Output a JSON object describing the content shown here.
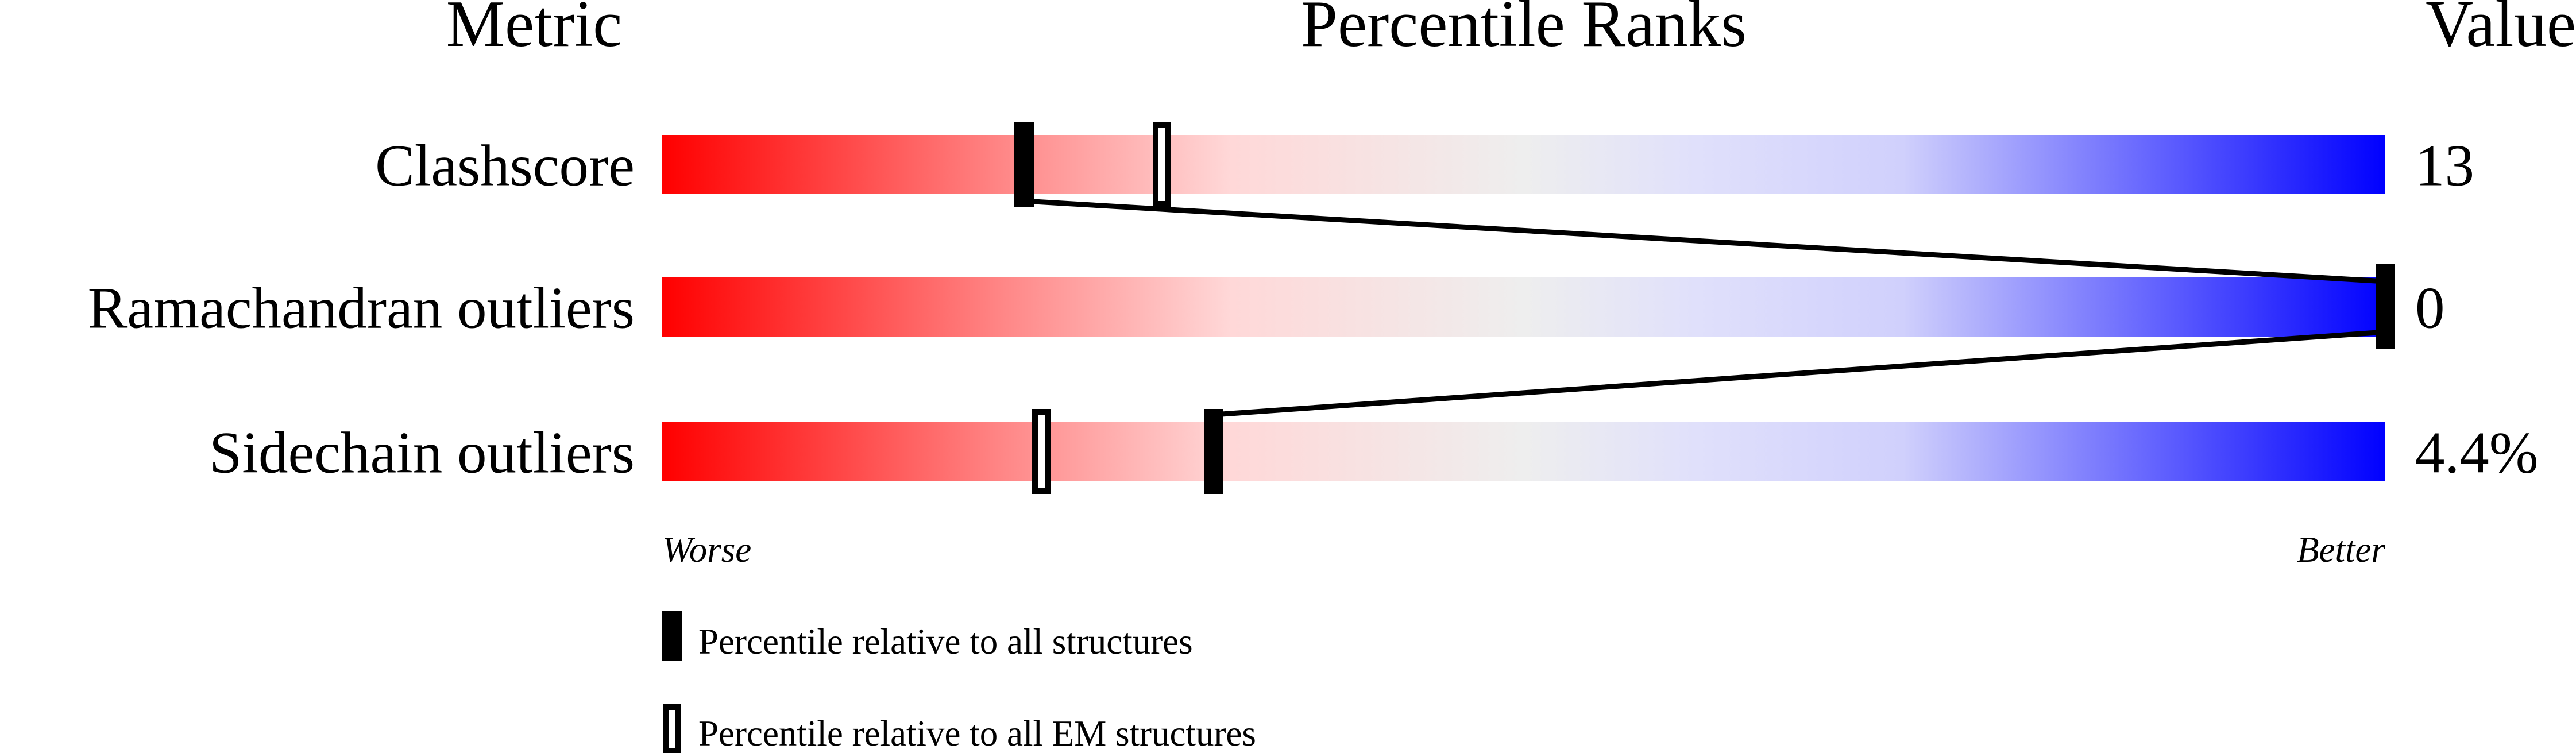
{
  "chart_data": {
    "type": "bar",
    "headers": {
      "metric": "Metric",
      "ranks": "Percentile Ranks",
      "value": "Value"
    },
    "xlim": [
      0,
      100
    ],
    "metrics": [
      {
        "name": "Clashscore",
        "value": "13",
        "percentile_all": 21,
        "percentile_em": 29
      },
      {
        "name": "Ramachandran outliers",
        "value": "0",
        "percentile_all": 100,
        "percentile_em": 100
      },
      {
        "name": "Sidechain outliers",
        "value": "4.4%",
        "percentile_all": 32,
        "percentile_em": 22
      }
    ],
    "axis_labels": {
      "left": "Worse",
      "right": "Better"
    },
    "legend": [
      {
        "style": "filled",
        "label": "Percentile relative to all structures"
      },
      {
        "style": "hollow",
        "label": "Percentile relative to all EM structures"
      }
    ],
    "colors": {
      "worse": "#ff0000",
      "middle": "#eeeeee",
      "better": "#0000ff",
      "marker": "#000000"
    }
  }
}
